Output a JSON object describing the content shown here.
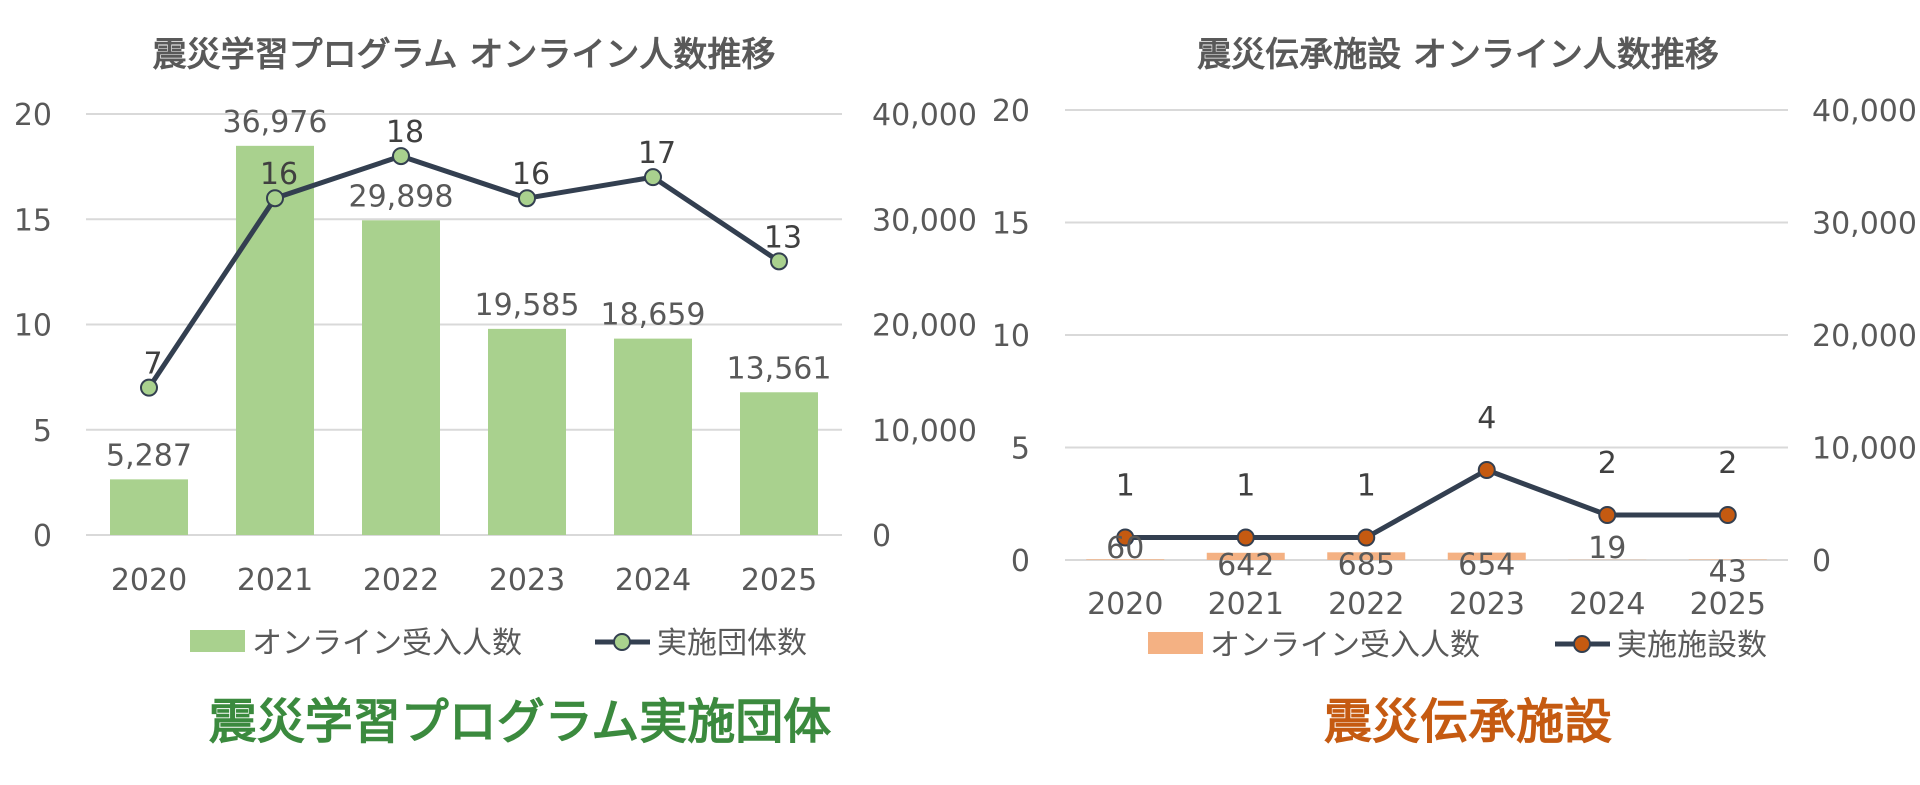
{
  "colors": {
    "axis_text": "#595959",
    "grid": "#d9d9d9",
    "line": "#333f50",
    "left_bar": "#a9d18e",
    "left_marker": "#a9d18e",
    "left_caption": "#3b8a3e",
    "right_bar": "#f4b183",
    "right_marker": "#c55a11",
    "right_caption": "#c55a11"
  },
  "chart_data": [
    {
      "type": "bar+line",
      "title": "震災学習プログラム オンライン人数推移",
      "caption": "震災学習プログラム実施団体",
      "categories": [
        "2020",
        "2021",
        "2022",
        "2023",
        "2024",
        "2025"
      ],
      "left_axis": {
        "ylim": [
          0,
          20
        ],
        "ticks": [
          "0",
          "5",
          "10",
          "15",
          "20"
        ]
      },
      "right_axis": {
        "ylim": [
          0,
          40000
        ],
        "ticks": [
          "0",
          "10,000",
          "20,000",
          "30,000",
          "40,000"
        ]
      },
      "grid": true,
      "legend_position": "bottom",
      "series": [
        {
          "name": "オンライン受入人数",
          "kind": "bar",
          "axis": "right",
          "values": [
            5287,
            36976,
            29898,
            19585,
            18659,
            13561
          ],
          "labels": [
            "5,287",
            "36,976",
            "29,898",
            "19,585",
            "18,659",
            "13,561"
          ]
        },
        {
          "name": "実施団体数",
          "kind": "line",
          "axis": "left",
          "values": [
            7,
            16,
            18,
            16,
            17,
            13
          ],
          "labels": [
            "7",
            "16",
            "18",
            "16",
            "17",
            "13"
          ]
        }
      ]
    },
    {
      "type": "bar+line",
      "title": "震災伝承施設 オンライン人数推移",
      "caption": "震災伝承施設",
      "categories": [
        "2020",
        "2021",
        "2022",
        "2023",
        "2024",
        "2025"
      ],
      "left_axis": {
        "ylim": [
          0,
          20
        ],
        "ticks": [
          "0",
          "5",
          "10",
          "15",
          "20"
        ]
      },
      "right_axis": {
        "ylim": [
          0,
          40000
        ],
        "ticks": [
          "0",
          "10,000",
          "20,000",
          "30,000",
          "40,000"
        ]
      },
      "grid": true,
      "legend_position": "bottom",
      "series": [
        {
          "name": "オンライン受入人数",
          "kind": "bar",
          "axis": "right",
          "values": [
            60,
            642,
            685,
            654,
            19,
            43
          ],
          "labels": [
            "60",
            "642",
            "685",
            "654",
            "19",
            "43"
          ]
        },
        {
          "name": "実施施設数",
          "kind": "line",
          "axis": "left",
          "values": [
            1,
            1,
            1,
            4,
            2,
            2
          ],
          "labels": [
            "1",
            "1",
            "1",
            "4",
            "2",
            "2"
          ]
        }
      ]
    }
  ]
}
